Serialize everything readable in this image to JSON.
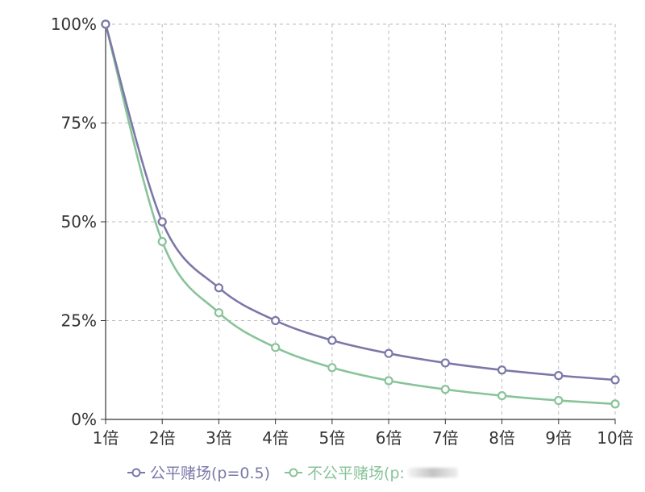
{
  "colors": {
    "fair": "#7b78a8",
    "unfair": "#88c39a",
    "grid": "#bbbbbb",
    "axis": "#333333"
  },
  "chart_data": {
    "type": "line",
    "categories": [
      "1倍",
      "2倍",
      "3倍",
      "4倍",
      "5倍",
      "6倍",
      "7倍",
      "8倍",
      "9倍",
      "10倍"
    ],
    "y_ticks": [
      "0%",
      "25%",
      "50%",
      "75%",
      "100%"
    ],
    "ylim": [
      0,
      100
    ],
    "grid": true,
    "legend_position": "bottom",
    "series": [
      {
        "name": "公平赌场(p=0.5)",
        "values": [
          100,
          50,
          33.3,
          25,
          20,
          16.7,
          14.3,
          12.5,
          11.1,
          10
        ]
      },
      {
        "name": "不公平赌场(p:",
        "values": [
          100,
          45,
          27,
          18.2,
          13.1,
          9.8,
          7.6,
          6,
          4.8,
          3.9
        ]
      }
    ]
  }
}
